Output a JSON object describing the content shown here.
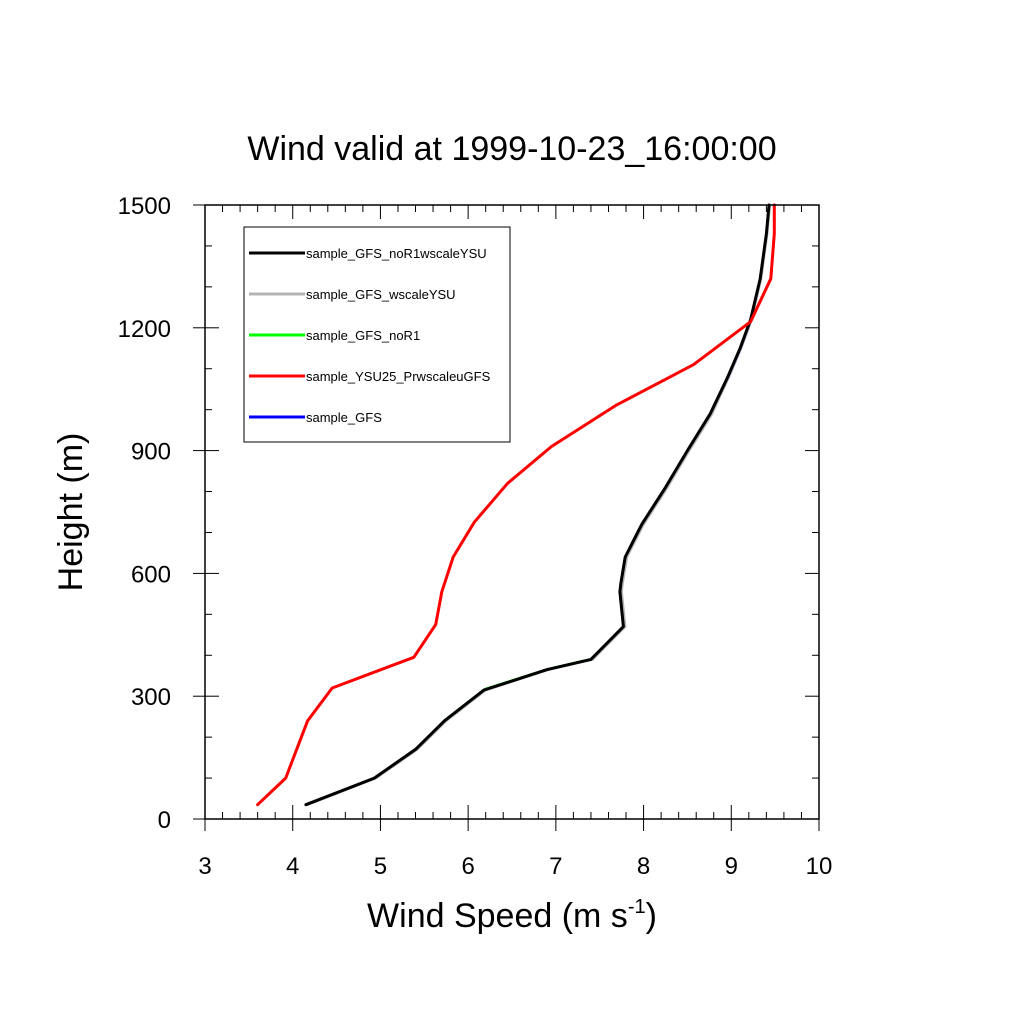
{
  "chart_data": {
    "type": "line",
    "title": "Wind valid at 1999-10-23_16:00:00",
    "xlabel": "Wind Speed (m s",
    "xlabel_sup": "-1",
    "xlabel_tail": ")",
    "ylabel": "Height (m)",
    "xlim": [
      3,
      10
    ],
    "ylim": [
      0,
      1500
    ],
    "x_ticks": [
      3,
      4,
      5,
      6,
      7,
      8,
      9,
      10
    ],
    "y_ticks": [
      0,
      300,
      600,
      900,
      1200,
      1500
    ],
    "x_tick_labels": [
      "3",
      "4",
      "5",
      "6",
      "7",
      "8",
      "9",
      "10"
    ],
    "y_tick_labels": [
      "0",
      "300",
      "600",
      "900",
      "1200",
      "1500"
    ],
    "legend_position": "top-left",
    "series": [
      {
        "name": "sample_GFS_noR1wscaleYSU",
        "color": "#000000",
        "x": [
          4.15,
          4.93,
          5.4,
          5.73,
          6.18,
          6.9,
          7.4,
          7.77,
          7.73,
          7.74,
          7.79,
          7.98,
          8.25,
          8.5,
          8.76,
          8.96,
          9.1,
          9.22,
          9.33,
          9.4,
          9.43
        ],
        "y": [
          35,
          100,
          170,
          240,
          315,
          365,
          390,
          470,
          555,
          575,
          640,
          720,
          810,
          900,
          990,
          1080,
          1150,
          1220,
          1320,
          1430,
          1500
        ]
      },
      {
        "name": "sample_GFS_wscaleYSU",
        "color": "#b4b4b4",
        "x": [
          4.17,
          4.95,
          5.42,
          5.75,
          6.2,
          6.92,
          7.42,
          7.79,
          7.75,
          7.76,
          7.81,
          8.0,
          8.27,
          8.52,
          8.78,
          8.97,
          9.11,
          9.23,
          9.34,
          9.41,
          9.44
        ],
        "y": [
          35,
          100,
          170,
          240,
          315,
          365,
          390,
          470,
          555,
          575,
          640,
          720,
          810,
          900,
          990,
          1080,
          1150,
          1220,
          1320,
          1430,
          1500
        ]
      },
      {
        "name": "sample_GFS_noR1",
        "color": "#00ff00",
        "x": [
          4.15,
          4.93,
          5.41,
          5.74,
          6.19,
          6.91,
          7.41,
          7.78,
          7.74,
          7.75,
          7.8,
          7.99,
          8.26,
          8.51,
          8.77,
          8.96,
          9.1,
          9.22,
          9.33,
          9.4,
          9.43
        ],
        "y": [
          35,
          100,
          172,
          242,
          317,
          366,
          391,
          470,
          555,
          575,
          640,
          720,
          810,
          900,
          990,
          1080,
          1150,
          1220,
          1320,
          1430,
          1500
        ]
      },
      {
        "name": "sample_YSU25_PrwscaleuGFS",
        "color": "#ff0000",
        "x": [
          3.6,
          3.92,
          4.17,
          4.45,
          5.38,
          5.63,
          5.7,
          5.83,
          6.07,
          6.45,
          6.95,
          7.68,
          8.57,
          9.22,
          9.45,
          9.49,
          9.49
        ],
        "y": [
          35,
          100,
          240,
          320,
          395,
          475,
          555,
          640,
          725,
          820,
          910,
          1010,
          1110,
          1215,
          1320,
          1430,
          1500
        ]
      },
      {
        "name": "sample_GFS",
        "color": "#0000ff",
        "x": [
          4.16,
          4.94,
          5.41,
          5.74,
          6.19,
          6.91,
          7.41,
          7.78,
          7.74,
          7.75,
          7.8,
          7.99,
          8.26,
          8.51,
          8.77,
          8.97,
          9.11,
          9.23,
          9.33,
          9.4,
          9.43
        ],
        "y": [
          35,
          100,
          170,
          240,
          315,
          365,
          390,
          470,
          555,
          575,
          640,
          720,
          810,
          900,
          990,
          1080,
          1150,
          1220,
          1320,
          1430,
          1500
        ]
      }
    ]
  }
}
